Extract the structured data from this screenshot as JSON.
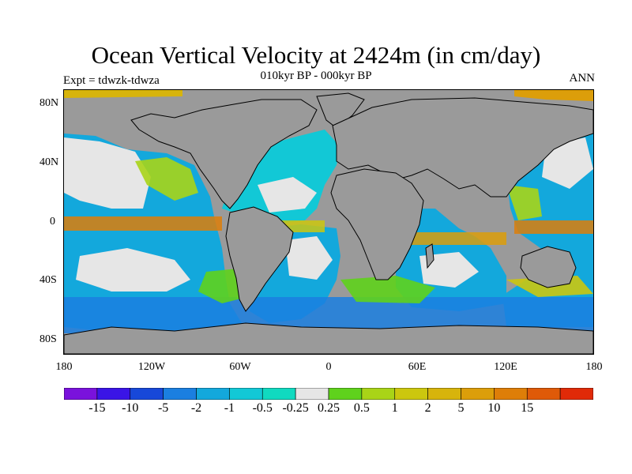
{
  "title": "Ocean Vertical Velocity at 2424m (in cm/day)",
  "subtitle": "010kyr BP - 000kyr BP",
  "expt_label": "Expt = tdwzk-tdwza",
  "season_label": "ANN",
  "map": {
    "projection": "cylindrical-equidistant",
    "land_color": "#9a9a9a",
    "coastline_color": "#000000",
    "lon_range": [
      -180,
      180
    ],
    "lat_range": [
      -90,
      90
    ],
    "lat_ticks": [
      {
        "label": "80N",
        "value": 80
      },
      {
        "label": "40N",
        "value": 40
      },
      {
        "label": "0",
        "value": 0
      },
      {
        "label": "40S",
        "value": -40
      },
      {
        "label": "80S",
        "value": -80
      }
    ],
    "lon_ticks": [
      {
        "label": "180",
        "value": -180
      },
      {
        "label": "120W",
        "value": -120
      },
      {
        "label": "60W",
        "value": -60
      },
      {
        "label": "0",
        "value": 0
      },
      {
        "label": "60E",
        "value": 60
      },
      {
        "label": "120E",
        "value": 120
      },
      {
        "label": "180",
        "value": 180
      }
    ]
  },
  "colorbar": {
    "colors": [
      "#7a12dc",
      "#3a14e6",
      "#1748d9",
      "#1b7fe0",
      "#13a8dc",
      "#12c8d6",
      "#10dac0",
      "#e6e6e6",
      "#5fd21c",
      "#a9d417",
      "#ccc70e",
      "#d7b40c",
      "#dc9e0a",
      "#de7e08",
      "#df5a08",
      "#e02a08"
    ],
    "labels": [
      "-15",
      "-10",
      "-5",
      "-2",
      "-1",
      "-0.5",
      "-0.25",
      "0.25",
      "0.5",
      "1",
      "2",
      "5",
      "10",
      "15"
    ]
  }
}
